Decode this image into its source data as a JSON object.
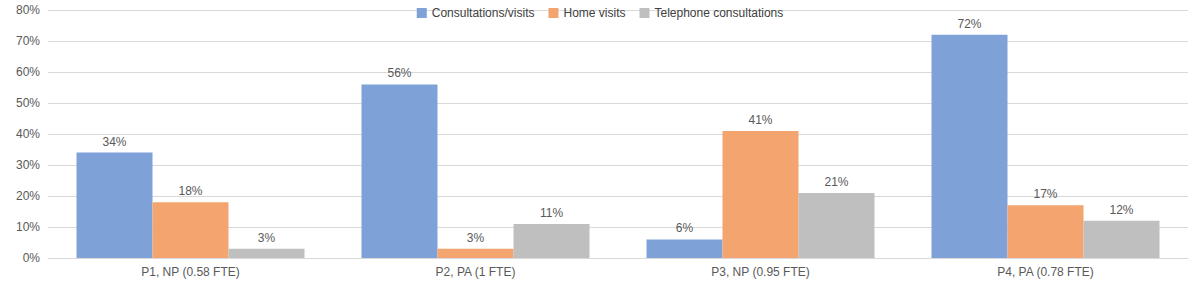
{
  "chart_data": {
    "type": "bar",
    "categories": [
      "P1, NP (0.58 FTE)",
      "P2, PA (1 FTE)",
      "P3, NP (0.95 FTE)",
      "P4, PA (0.78 FTE)"
    ],
    "series": [
      {
        "name": "Consultations/visits",
        "color": "#7ea1d7",
        "values": [
          34,
          56,
          6,
          72
        ],
        "value_labels": [
          "34%",
          "56%",
          "6%",
          "72%"
        ]
      },
      {
        "name": "Home visits",
        "color": "#f4a46e",
        "values": [
          18,
          3,
          41,
          17
        ],
        "value_labels": [
          "18%",
          "3%",
          "41%",
          "17%"
        ]
      },
      {
        "name": "Telephone consultations",
        "color": "#bfbfbf",
        "values": [
          3,
          11,
          21,
          12
        ],
        "value_labels": [
          "3%",
          "11%",
          "21%",
          "12%"
        ]
      }
    ],
    "ylim": [
      0,
      80
    ],
    "yticks": [
      {
        "value": 0,
        "label": "0%"
      },
      {
        "value": 10,
        "label": "10%"
      },
      {
        "value": 20,
        "label": "20%"
      },
      {
        "value": 30,
        "label": "30%"
      },
      {
        "value": 40,
        "label": "40%"
      },
      {
        "value": 50,
        "label": "50%"
      },
      {
        "value": 60,
        "label": "60%"
      },
      {
        "value": 70,
        "label": "70%"
      },
      {
        "value": 80,
        "label": "80%"
      }
    ],
    "grid": true,
    "legend": "top",
    "data_labels": true
  }
}
